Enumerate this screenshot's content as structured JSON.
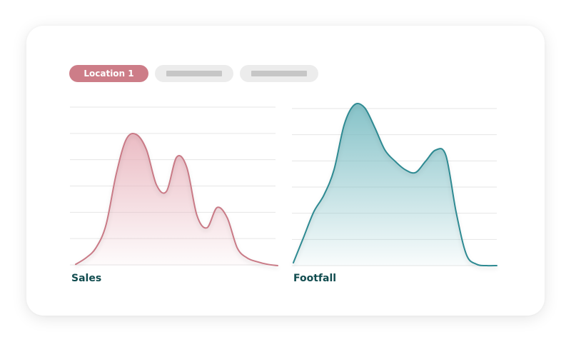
{
  "tabs": [
    {
      "label": "Location 1",
      "active": true
    },
    {
      "label": "",
      "active": false
    },
    {
      "label": "",
      "active": false
    }
  ],
  "colors": {
    "sales_line": "#c97a86",
    "sales_fill": "#e8b4bd",
    "footfall_line": "#2f8a92",
    "footfall_fill": "#7fbfc5",
    "label_text": "#114c4f",
    "tab_active": "#cd7d88"
  },
  "chart_data": [
    {
      "type": "area",
      "title": "Sales",
      "grid": true,
      "ylim": [
        0,
        6
      ],
      "x": [
        0,
        0.05,
        0.1,
        0.15,
        0.2,
        0.25,
        0.3,
        0.35,
        0.4,
        0.45,
        0.5,
        0.55,
        0.6,
        0.65,
        0.7,
        0.75,
        0.8,
        0.85,
        0.9,
        0.95,
        1
      ],
      "series": [
        {
          "values": [
            0.05,
            0.3,
            0.7,
            1.6,
            3.6,
            5.0,
            5.2,
            4.6,
            3.2,
            2.95,
            4.3,
            3.9,
            2.0,
            1.5,
            2.3,
            1.9,
            0.7,
            0.3,
            0.15,
            0.05,
            0.0
          ]
        }
      ]
    },
    {
      "type": "area",
      "title": "Footfall",
      "grid": true,
      "ylim": [
        0,
        6
      ],
      "x": [
        0,
        0.05,
        0.1,
        0.15,
        0.2,
        0.25,
        0.3,
        0.35,
        0.4,
        0.45,
        0.5,
        0.55,
        0.6,
        0.65,
        0.7,
        0.75,
        0.8,
        0.85,
        0.9,
        0.95,
        1
      ],
      "series": [
        {
          "values": [
            0.1,
            1.0,
            1.9,
            2.5,
            3.4,
            5.0,
            5.7,
            5.6,
            4.9,
            4.1,
            3.7,
            3.4,
            3.3,
            3.7,
            4.1,
            3.9,
            1.9,
            0.4,
            0.05,
            0.0,
            0.0
          ]
        }
      ]
    }
  ]
}
